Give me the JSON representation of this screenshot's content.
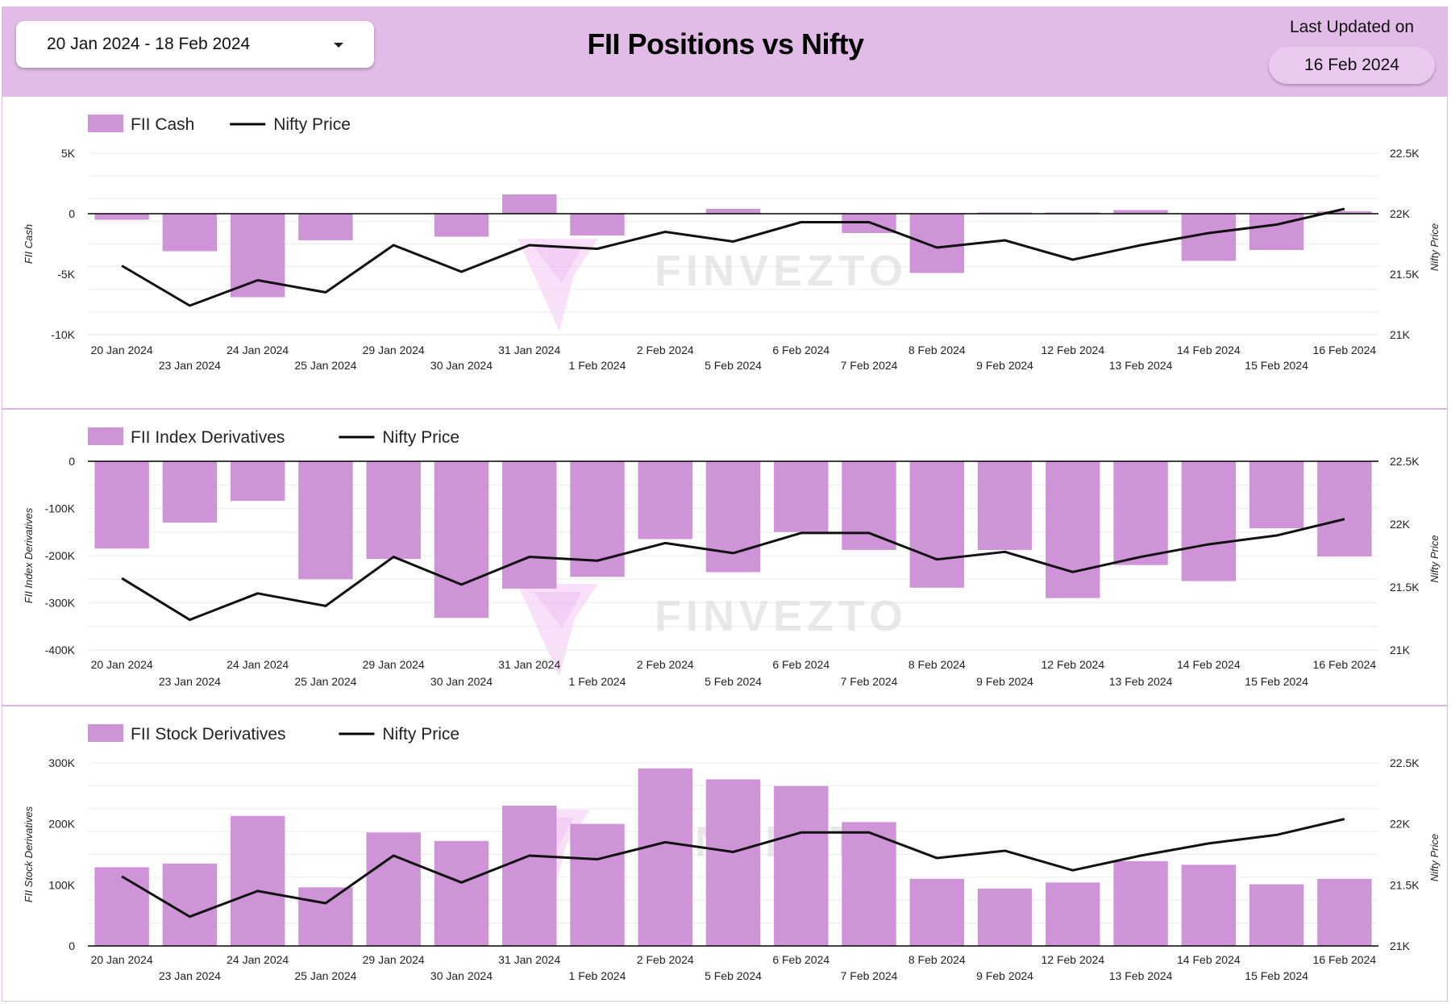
{
  "header": {
    "date_range": "20 Jan 2024 - 18 Feb 2024",
    "title": "FII Positions vs Nifty",
    "updated_label": "Last Updated on",
    "updated_date": "16 Feb 2024"
  },
  "watermark": "FINVEZTO",
  "colors": {
    "header_bg": "#e1bce6",
    "bar": "#cf94d8",
    "line": "#111111",
    "accent_border": "#d9b6df"
  },
  "chart_data": [
    {
      "type": "bar",
      "title": "",
      "legend": [
        "FII Cash",
        "Nifty Price"
      ],
      "legend_position": "top-left",
      "ylabel": "FII Cash",
      "y2label": "Nifty Price",
      "categories": [
        "20 Jan 2024",
        "23 Jan 2024",
        "24 Jan 2024",
        "25 Jan 2024",
        "29 Jan 2024",
        "30 Jan 2024",
        "31 Jan 2024",
        "1 Feb 2024",
        "2 Feb 2024",
        "5 Feb 2024",
        "6 Feb 2024",
        "7 Feb 2024",
        "8 Feb 2024",
        "9 Feb 2024",
        "12 Feb 2024",
        "13 Feb 2024",
        "14 Feb 2024",
        "15 Feb 2024",
        "16 Feb 2024"
      ],
      "series": [
        {
          "name": "FII Cash",
          "type": "bar",
          "axis": "left",
          "values": [
            -500,
            -3100,
            -6900,
            -2200,
            0,
            -1900,
            1600,
            -1800,
            0,
            400,
            0,
            -1600,
            -4900,
            100,
            100,
            300,
            -3900,
            -3000,
            200
          ]
        },
        {
          "name": "Nifty Price",
          "type": "line",
          "axis": "right",
          "values": [
            21570,
            21240,
            21450,
            21350,
            21740,
            21520,
            21740,
            21710,
            21850,
            21770,
            21930,
            21930,
            21720,
            21780,
            21620,
            21740,
            21840,
            21910,
            22040
          ]
        }
      ],
      "ylim": [
        -10000,
        5000
      ],
      "yticks": [
        -10000,
        -5000,
        0,
        5000
      ],
      "yticklabels": [
        "-10K",
        "-5K",
        "0",
        "5K"
      ],
      "y2lim": [
        21000,
        22500
      ],
      "y2ticks": [
        21000,
        21500,
        22000,
        22500
      ],
      "y2ticklabels": [
        "21K",
        "21.5K",
        "22K",
        "22.5K"
      ],
      "grid": true
    },
    {
      "type": "bar",
      "title": "",
      "legend": [
        "FII Index Derivatives",
        "Nifty Price"
      ],
      "legend_position": "top-left",
      "ylabel": "FII Index Derivatives",
      "y2label": "Nifty Price",
      "categories": [
        "20 Jan 2024",
        "23 Jan 2024",
        "24 Jan 2024",
        "25 Jan 2024",
        "29 Jan 2024",
        "30 Jan 2024",
        "31 Jan 2024",
        "1 Feb 2024",
        "2 Feb 2024",
        "5 Feb 2024",
        "6 Feb 2024",
        "7 Feb 2024",
        "8 Feb 2024",
        "9 Feb 2024",
        "12 Feb 2024",
        "13 Feb 2024",
        "14 Feb 2024",
        "15 Feb 2024",
        "16 Feb 2024"
      ],
      "series": [
        {
          "name": "FII Index Derivatives",
          "type": "bar",
          "axis": "left",
          "values": [
            -185000,
            -130000,
            -84000,
            -250000,
            -207000,
            -332000,
            -270000,
            -245000,
            -165000,
            -235000,
            -150000,
            -188000,
            -268000,
            -188000,
            -290000,
            -220000,
            -254000,
            -142000,
            -202000
          ]
        },
        {
          "name": "Nifty Price",
          "type": "line",
          "axis": "right",
          "values": [
            21570,
            21240,
            21450,
            21350,
            21740,
            21520,
            21740,
            21710,
            21850,
            21770,
            21930,
            21930,
            21720,
            21780,
            21620,
            21740,
            21840,
            21910,
            22040
          ]
        }
      ],
      "ylim": [
        -400000,
        0
      ],
      "yticks": [
        -400000,
        -300000,
        -200000,
        -100000,
        0
      ],
      "yticklabels": [
        "-400K",
        "-300K",
        "-200K",
        "-100K",
        "0"
      ],
      "y2lim": [
        21000,
        22500
      ],
      "y2ticks": [
        21000,
        21500,
        22000,
        22500
      ],
      "y2ticklabels": [
        "21K",
        "21.5K",
        "22K",
        "22.5K"
      ],
      "grid": true
    },
    {
      "type": "bar",
      "title": "",
      "legend": [
        "FII Stock Derivatives",
        "Nifty Price"
      ],
      "legend_position": "top-left",
      "ylabel": "FII Stock Derivatives",
      "y2label": "Nifty Price",
      "categories": [
        "20 Jan 2024",
        "23 Jan 2024",
        "24 Jan 2024",
        "25 Jan 2024",
        "29 Jan 2024",
        "30 Jan 2024",
        "31 Jan 2024",
        "1 Feb 2024",
        "2 Feb 2024",
        "5 Feb 2024",
        "6 Feb 2024",
        "7 Feb 2024",
        "8 Feb 2024",
        "9 Feb 2024",
        "12 Feb 2024",
        "13 Feb 2024",
        "14 Feb 2024",
        "15 Feb 2024",
        "16 Feb 2024"
      ],
      "series": [
        {
          "name": "FII Stock Derivatives",
          "type": "bar",
          "axis": "left",
          "values": [
            129000,
            135000,
            213000,
            96000,
            186000,
            172000,
            230000,
            200000,
            291000,
            273000,
            262000,
            203000,
            110000,
            94000,
            104000,
            139000,
            133000,
            101000,
            110000
          ]
        },
        {
          "name": "Nifty Price",
          "type": "line",
          "axis": "right",
          "values": [
            21570,
            21240,
            21450,
            21350,
            21740,
            21520,
            21740,
            21710,
            21850,
            21770,
            21930,
            21930,
            21720,
            21780,
            21620,
            21740,
            21840,
            21910,
            22040
          ]
        }
      ],
      "ylim": [
        0,
        300000
      ],
      "yticks": [
        0,
        100000,
        200000,
        300000
      ],
      "yticklabels": [
        "0",
        "100K",
        "200K",
        "300K"
      ],
      "y2lim": [
        21000,
        22500
      ],
      "y2ticks": [
        21000,
        21500,
        22000,
        22500
      ],
      "y2ticklabels": [
        "21K",
        "21.5K",
        "22K",
        "22.5K"
      ],
      "grid": true
    }
  ]
}
